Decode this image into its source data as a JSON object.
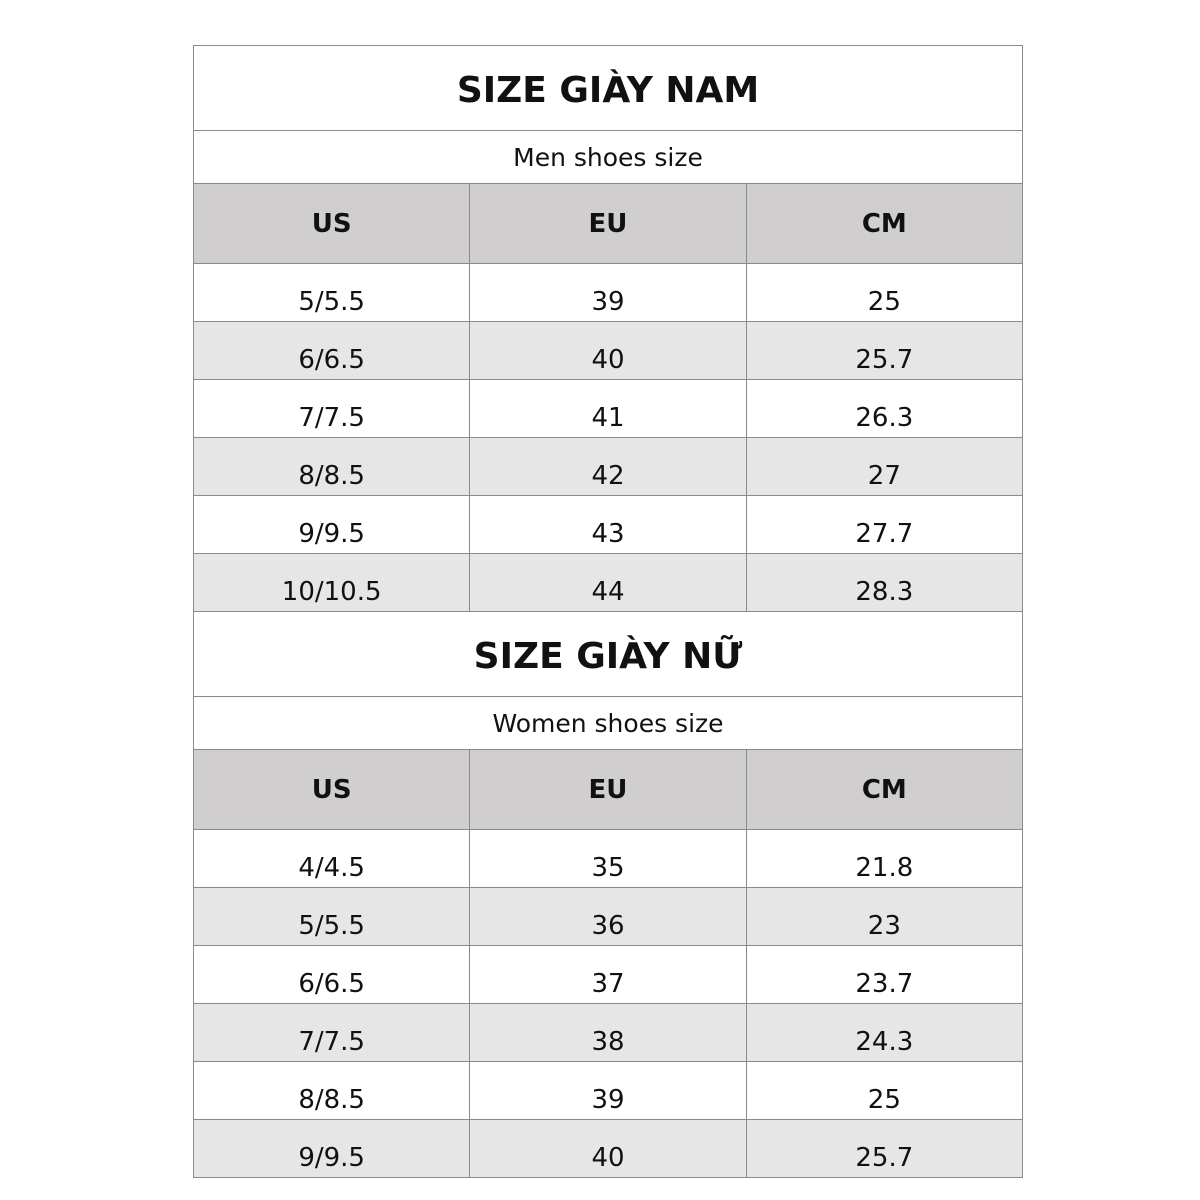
{
  "tables": [
    {
      "title": "SIZE GIÀY NAM",
      "subtitle": "Men shoes size",
      "headers": [
        "US",
        "EU",
        "CM"
      ],
      "rows": [
        [
          "5/5.5",
          "39",
          "25"
        ],
        [
          "6/6.5",
          "40",
          "25.7"
        ],
        [
          "7/7.5",
          "41",
          "26.3"
        ],
        [
          "8/8.5",
          "42",
          "27"
        ],
        [
          "9/9.5",
          "43",
          "27.7"
        ],
        [
          "10/10.5",
          "44",
          "28.3"
        ]
      ]
    },
    {
      "title": "SIZE GIÀY NỮ",
      "subtitle": "Women shoes size",
      "headers": [
        "US",
        "EU",
        "CM"
      ],
      "rows": [
        [
          "4/4.5",
          "35",
          "21.8"
        ],
        [
          "5/5.5",
          "36",
          "23"
        ],
        [
          "6/6.5",
          "37",
          "23.7"
        ],
        [
          "7/7.5",
          "38",
          "24.3"
        ],
        [
          "8/8.5",
          "39",
          "25"
        ],
        [
          "9/9.5",
          "40",
          "25.7"
        ]
      ]
    }
  ],
  "colors": {
    "header_bg": "#d0cece",
    "alt_row_bg": "#e7e6e6",
    "border": "#8a8a8a"
  }
}
